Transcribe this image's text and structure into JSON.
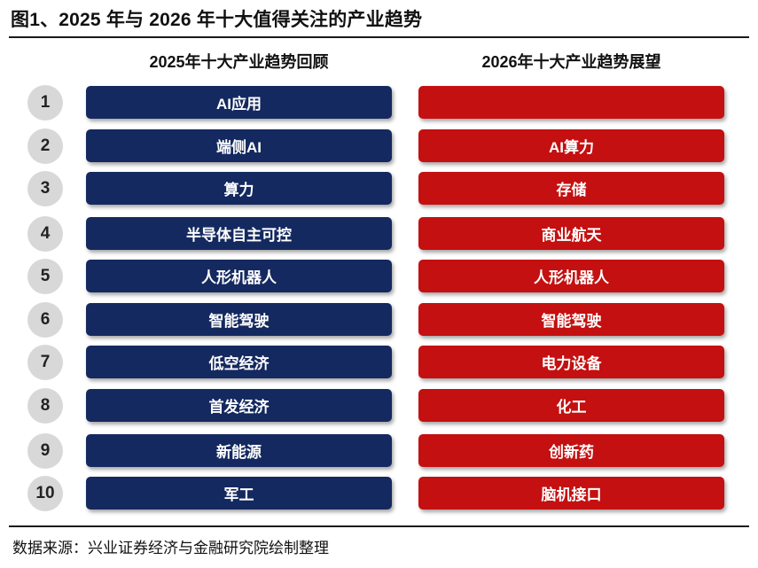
{
  "figure": {
    "title": "图1、2025 年与 2026 年十大值得关注的产业趋势",
    "source": "数据来源：兴业证券经济与金融研究院绘制整理"
  },
  "columns": {
    "left_header": "2025年十大产业趋势回顾",
    "right_header": "2026年十大产业趋势展望"
  },
  "colors": {
    "left_bar": "#14295f",
    "right_bar": "#c41010",
    "number_circle": "#d8d8d8"
  },
  "rows": [
    {
      "num": "1",
      "left": "AI应用",
      "right": "",
      "right_obscured": true
    },
    {
      "num": "2",
      "left": "端侧AI",
      "right": "AI算力"
    },
    {
      "num": "3",
      "left": "算力",
      "right": "存储"
    },
    {
      "num": "4",
      "left": "半导体自主可控",
      "right": "商业航天"
    },
    {
      "num": "5",
      "left": "人形机器人",
      "right": "人形机器人"
    },
    {
      "num": "6",
      "left": "智能驾驶",
      "right": "智能驾驶"
    },
    {
      "num": "7",
      "left": "低空经济",
      "right": "电力设备"
    },
    {
      "num": "8",
      "left": "首发经济",
      "right": "化工"
    },
    {
      "num": "9",
      "left": "新能源",
      "right": "创新药"
    },
    {
      "num": "10",
      "left": "军工",
      "right": "脑机接口"
    }
  ]
}
